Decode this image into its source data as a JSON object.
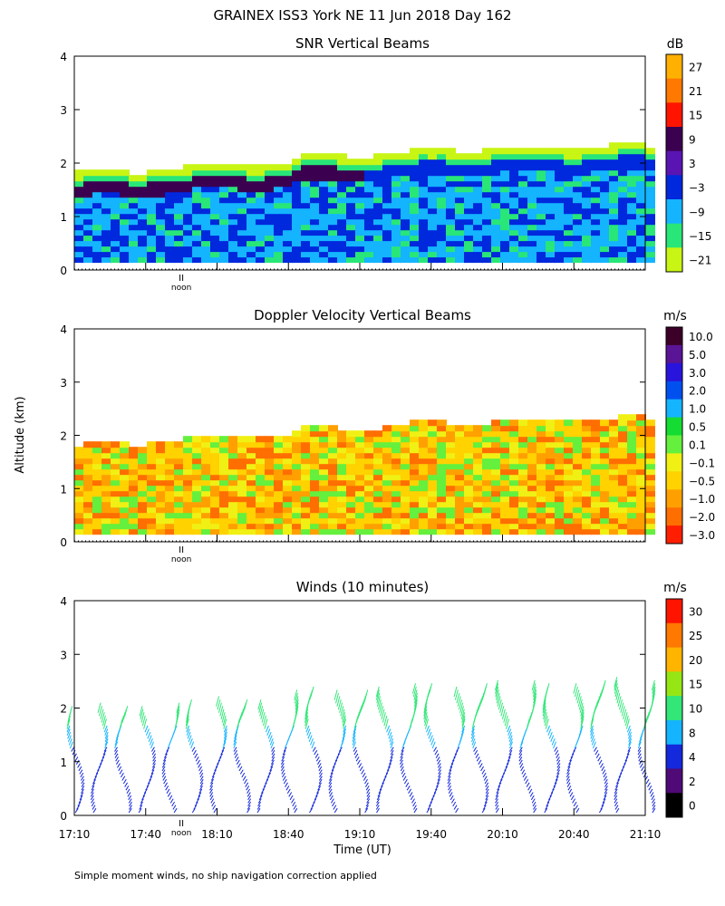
{
  "figure": {
    "title": "GRAINEX ISS3 York NE  11 Jun 2018 Day 162",
    "ylabel": "Altitude (km)",
    "xlabel": "Time (UT)",
    "footnote": "Simple moment winds, no ship navigation correction applied",
    "noon_label": "noon",
    "noon_marker": "II"
  },
  "chart_data": [
    {
      "type": "heatmap",
      "title": "SNR Vertical Beams",
      "colorbar_unit": "dB",
      "colorbar_ticks": [
        "27",
        "21",
        "15",
        "9",
        "3",
        "−3",
        "−9",
        "−15",
        "−21"
      ],
      "colorbar_colors": [
        "#ffb000",
        "#ff7800",
        "#ff1400",
        "#3c0050",
        "#5a14b4",
        "#0028dc",
        "#14b4ff",
        "#28e678",
        "#c8f514"
      ],
      "ylim": [
        0,
        4
      ],
      "yticks": [
        "0",
        "1",
        "2",
        "3",
        "4"
      ],
      "xlim_minutes_after_17_10": [
        0,
        240
      ],
      "noon_at": "17:55"
    },
    {
      "type": "heatmap",
      "title": "Doppler Velocity Vertical Beams",
      "colorbar_unit": "m/s",
      "colorbar_ticks": [
        "10.0",
        "5.0",
        "3.0",
        "2.0",
        "1.0",
        "0.5",
        "0.1",
        "−0.1",
        "−0.5",
        "−1.0",
        "−2.0",
        "−3.0"
      ],
      "colorbar_colors": [
        "#3c0028",
        "#5a1496",
        "#2814dc",
        "#0050f0",
        "#14b4ff",
        "#14dc32",
        "#64f03c",
        "#f0f014",
        "#ffd200",
        "#ffa000",
        "#ff6e00",
        "#ff1e00"
      ],
      "ylim": [
        0,
        4
      ],
      "yticks": [
        "0",
        "1",
        "2",
        "3",
        "4"
      ],
      "noon_at": "17:55"
    },
    {
      "type": "scatter",
      "title": "Winds (10 minutes)",
      "colorbar_unit": "m/s",
      "colorbar_ticks": [
        "30",
        "25",
        "20",
        "15",
        "10",
        "8",
        "4",
        "2",
        "0"
      ],
      "colorbar_colors": [
        "#ff1400",
        "#ff7800",
        "#ffb400",
        "#96e614",
        "#32e678",
        "#14b4ff",
        "#1428dc",
        "#500a78",
        "#000000"
      ],
      "ylim": [
        0,
        4
      ],
      "yticks": [
        "0",
        "1",
        "2",
        "3",
        "4"
      ],
      "xticks": [
        "17:10",
        "17:40",
        "18:10",
        "18:40",
        "19:10",
        "19:40",
        "20:10",
        "20:40",
        "21:10"
      ],
      "noon_at": "17:55"
    }
  ]
}
